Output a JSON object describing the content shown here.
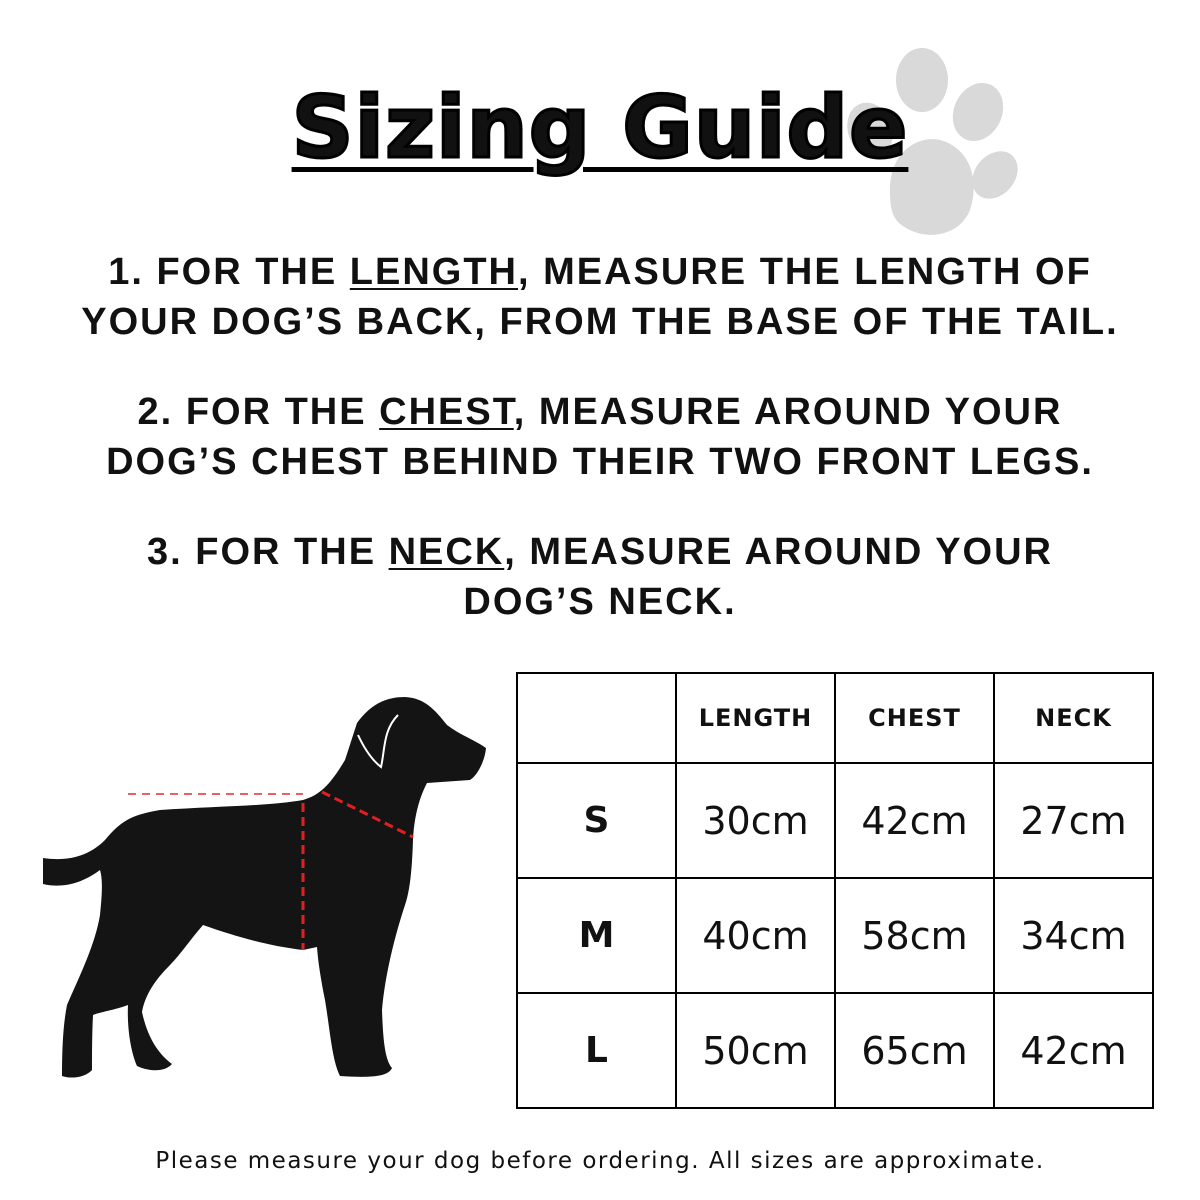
{
  "title": "Sizing Guide",
  "instructions": [
    {
      "number": "1.",
      "pre": "For the ",
      "keyword": "Length",
      "post_line1": ", measure the length of",
      "line2": "your dog’s back, from the base of the tail."
    },
    {
      "number": "2.",
      "pre": "For the ",
      "keyword": "Chest",
      "post_line1": ", measure around your",
      "line2": "dog’s chest behind their two front legs."
    },
    {
      "number": "3.",
      "pre": "For the ",
      "keyword": "Neck",
      "post_line1": ", measure around your",
      "line2": "dog’s neck."
    }
  ],
  "table": {
    "headers": [
      "",
      "LENGTH",
      "CHEST",
      "NECK"
    ],
    "rows": [
      {
        "size": "S",
        "length": "30cm",
        "chest": "42cm",
        "neck": "27cm"
      },
      {
        "size": "M",
        "length": "40cm",
        "chest": "58cm",
        "neck": "34cm"
      },
      {
        "size": "L",
        "length": "50cm",
        "chest": "65cm",
        "neck": "42cm"
      }
    ]
  },
  "footer": "Please measure your dog before ordering. All sizes are approximate.",
  "icons": {
    "paw": "paw-print-icon",
    "dog": "dog-silhouette"
  },
  "colors": {
    "measure_line": "#e02020",
    "paw": "#d9d9d9",
    "text": "#111111"
  }
}
